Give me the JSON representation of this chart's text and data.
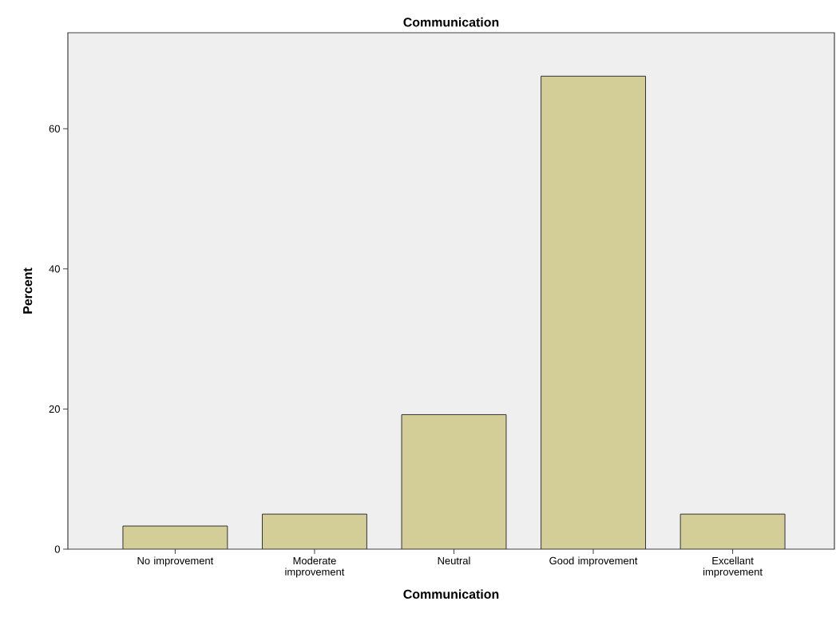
{
  "chart_data": {
    "type": "bar",
    "title": "Communication",
    "xlabel": "Communication",
    "ylabel": "Percent",
    "categories": [
      "No improvement",
      "Moderate improvement",
      "Neutral",
      "Good improvement",
      "Excellant improvement"
    ],
    "values": [
      3.3,
      5.0,
      19.2,
      67.5,
      5.0
    ],
    "color": "#d3ce97",
    "ylim": [
      0,
      73.7
    ],
    "yticks": [
      0,
      20,
      40,
      60
    ]
  }
}
